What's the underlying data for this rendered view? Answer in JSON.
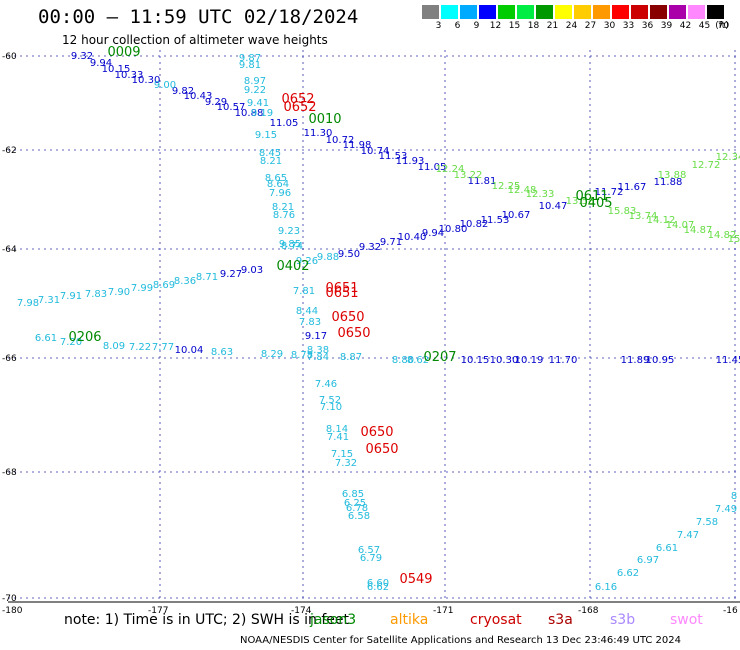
{
  "title": "00:00 – 11:59 UTC 02/18/2024",
  "subtitle": "12 hour collection of altimeter wave heights",
  "legend": {
    "unit": "(ft)",
    "bins": [
      {
        "label": "3",
        "color": "#808080"
      },
      {
        "label": "6",
        "color": "#00ffff"
      },
      {
        "label": "9",
        "color": "#00aaff"
      },
      {
        "label": "12",
        "color": "#0000ff"
      },
      {
        "label": "15",
        "color": "#00cc00"
      },
      {
        "label": "18",
        "color": "#00ee44"
      },
      {
        "label": "21",
        "color": "#009900"
      },
      {
        "label": "24",
        "color": "#ffff00"
      },
      {
        "label": "27",
        "color": "#ffcc00"
      },
      {
        "label": "30",
        "color": "#ff9900"
      },
      {
        "label": "33",
        "color": "#ff0000"
      },
      {
        "label": "36",
        "color": "#cc0000"
      },
      {
        "label": "39",
        "color": "#880000"
      },
      {
        "label": "42",
        "color": "#aa00aa"
      },
      {
        "label": "45",
        "color": "#ff88ff"
      },
      {
        "label": "70",
        "color": "#000000"
      }
    ]
  },
  "map": {
    "lon_ticks": [
      "-180",
      "-177",
      "-174",
      "-171",
      "-168",
      "-16"
    ],
    "lat_ticks": [
      "-60",
      "-62",
      "-64",
      "-66",
      "-68",
      "-70"
    ]
  },
  "footer": {
    "note": "note: 1) Time is in UTC; 2) SWH is in feet",
    "satellites": [
      {
        "name": "jason3",
        "color": "#008800"
      },
      {
        "name": "altika",
        "color": "#ff9900"
      },
      {
        "name": "cryosat",
        "color": "#cc0000"
      },
      {
        "name": "s3a",
        "color": "#aa0000"
      },
      {
        "name": "s3b",
        "color": "#aa88ff"
      },
      {
        "name": "swot",
        "color": "#ff88ff"
      }
    ],
    "credit": "NOAA/NESDIS Center for Satellite Applications and Research    13 Dec 23:46:49 UTC 2024"
  },
  "tracks": [
    {
      "color": "#0000cc",
      "points": [
        [
          "9.32",
          82,
          59
        ],
        [
          "9.94",
          101,
          66
        ],
        [
          "10.15",
          116,
          72
        ],
        [
          "10.33",
          129,
          78
        ],
        [
          "10.30",
          146,
          83
        ],
        [
          "9.82",
          183,
          94
        ],
        [
          "10.43",
          198,
          99
        ],
        [
          "9.29",
          216,
          105
        ],
        [
          "10.57",
          231,
          110
        ],
        [
          "10.88",
          249,
          116
        ],
        [
          "11.05",
          284,
          126
        ],
        [
          "11.30",
          318,
          136
        ],
        [
          "10.72",
          340,
          143
        ],
        [
          "11.98",
          357,
          148
        ],
        [
          "10.74",
          375,
          154
        ],
        [
          "11.53",
          393,
          159
        ],
        [
          "11.93",
          410,
          164
        ],
        [
          "11.05",
          432,
          170
        ],
        [
          "11.81",
          482,
          184
        ]
      ]
    },
    {
      "color": "#22bbdd",
      "points": [
        [
          "9.87",
          250,
          61
        ],
        [
          "9.81",
          250,
          68
        ],
        [
          "8.97",
          255,
          84
        ],
        [
          "9.22",
          255,
          93
        ],
        [
          "9.00",
          165,
          88
        ],
        [
          "9.41",
          258,
          106
        ],
        [
          "9.19",
          262,
          116
        ],
        [
          "9.15",
          266,
          138
        ],
        [
          "8.45",
          270,
          156
        ],
        [
          "8.21",
          271,
          164
        ],
        [
          "8.65",
          276,
          181
        ],
        [
          "8.64",
          278,
          187
        ],
        [
          "7.96",
          280,
          196
        ],
        [
          "8.21",
          283,
          210
        ],
        [
          "8.76",
          284,
          218
        ],
        [
          "9.23",
          289,
          234
        ],
        [
          "9.85",
          290,
          247
        ],
        [
          "9.26",
          307,
          264
        ],
        [
          "9.88",
          328,
          260
        ],
        [
          "8.74",
          292,
          249
        ],
        [
          "7.81",
          304,
          294
        ],
        [
          "8.44",
          307,
          314
        ],
        [
          "7.83",
          310,
          325
        ],
        [
          "8.38",
          318,
          353
        ],
        [
          "7.84",
          318,
          360
        ],
        [
          "7.46",
          326,
          387
        ],
        [
          "7.52",
          330,
          403
        ],
        [
          "7.10",
          331,
          410
        ],
        [
          "8.14",
          337,
          432
        ],
        [
          "7.41",
          338,
          440
        ],
        [
          "7.15",
          342,
          457
        ],
        [
          "7.32",
          346,
          466
        ],
        [
          "6.85",
          353,
          497
        ],
        [
          "6.25",
          355,
          506
        ],
        [
          "6.78",
          357,
          511
        ],
        [
          "6.58",
          359,
          519
        ],
        [
          "6.57",
          369,
          553
        ],
        [
          "6.79",
          371,
          561
        ],
        [
          "6.60",
          378,
          586
        ],
        [
          "6.62",
          378,
          590
        ]
      ]
    },
    {
      "color": "#0000cc",
      "points": [
        [
          "9.03",
          252,
          273
        ],
        [
          "9.27",
          231,
          277
        ],
        [
          "9.50",
          349,
          257
        ],
        [
          "9.32",
          370,
          250
        ],
        [
          "9.71",
          391,
          245
        ],
        [
          "10.40",
          412,
          240
        ],
        [
          "9.94",
          433,
          236
        ],
        [
          "10.80",
          453,
          232
        ],
        [
          "10.82",
          474,
          227
        ],
        [
          "11.53",
          495,
          223
        ],
        [
          "10.67",
          516,
          218
        ],
        [
          "10.47",
          553,
          209
        ],
        [
          "11.72",
          609,
          195
        ],
        [
          "11.67",
          632,
          190
        ],
        [
          "11.88",
          668,
          185
        ],
        [
          "10.04",
          189,
          353
        ],
        [
          "9.17",
          316,
          339
        ],
        [
          "10.15",
          475,
          363
        ],
        [
          "10.30",
          504,
          363
        ],
        [
          "10.19",
          529,
          363
        ],
        [
          "11.70",
          563,
          363
        ],
        [
          "11.89",
          635,
          363
        ],
        [
          "10.95",
          660,
          363
        ],
        [
          "11.45",
          730,
          363
        ]
      ]
    },
    {
      "color": "#22bbdd",
      "points": [
        [
          "7.98",
          28,
          306
        ],
        [
          "7.31",
          49,
          303
        ],
        [
          "7.91",
          71,
          299
        ],
        [
          "7.83",
          96,
          297
        ],
        [
          "7.90",
          119,
          295
        ],
        [
          "7.99",
          142,
          291
        ],
        [
          "8.69",
          164,
          288
        ],
        [
          "8.36",
          185,
          284
        ],
        [
          "8.71",
          207,
          280
        ],
        [
          "6.61",
          46,
          341
        ],
        [
          "7.20",
          71,
          345
        ],
        [
          "8.09",
          114,
          349
        ],
        [
          "7.22",
          140,
          350
        ],
        [
          "7.77",
          163,
          350
        ],
        [
          "8.63",
          222,
          355
        ],
        [
          "8.29",
          272,
          357
        ],
        [
          "8.78",
          302,
          358
        ],
        [
          "8.87",
          351,
          360
        ],
        [
          "8.80",
          403,
          363
        ],
        [
          "8.62",
          418,
          363
        ],
        [
          "6.16",
          606,
          590
        ],
        [
          "6.62",
          628,
          576
        ],
        [
          "6.97",
          648,
          563
        ],
        [
          "6.61",
          667,
          551
        ],
        [
          "7.47",
          688,
          538
        ],
        [
          "7.58",
          707,
          525
        ],
        [
          "7.49",
          726,
          512
        ],
        [
          "8",
          734,
          499
        ]
      ]
    },
    {
      "color": "#66dd44",
      "points": [
        [
          "12.24",
          450,
          172
        ],
        [
          "13.22",
          468,
          178
        ],
        [
          "12.25",
          506,
          189
        ],
        [
          "12.48",
          522,
          193
        ],
        [
          "12.33",
          540,
          197
        ],
        [
          "13.58",
          580,
          204
        ],
        [
          "15.83",
          622,
          214
        ],
        [
          "13.74",
          643,
          219
        ],
        [
          "14.12",
          661,
          223
        ],
        [
          "14.07",
          680,
          228
        ],
        [
          "14.87",
          698,
          233
        ],
        [
          "14.82",
          722,
          238
        ],
        [
          "15",
          734,
          242
        ],
        [
          "13.88",
          672,
          178
        ],
        [
          "12.72",
          706,
          168
        ],
        [
          "12.34",
          730,
          160
        ]
      ]
    },
    {
      "color": "#008800",
      "labels": [
        [
          "0009",
          124,
          56
        ],
        [
          "0010",
          325,
          123
        ],
        [
          "0402",
          293,
          270
        ],
        [
          "0206",
          85,
          341
        ],
        [
          "0207",
          440,
          361
        ],
        [
          "0405",
          596,
          207
        ],
        [
          "0611",
          592,
          200
        ]
      ]
    },
    {
      "color": "#dd0000",
      "labels": [
        [
          "0652",
          298,
          103
        ],
        [
          "0652",
          300,
          111
        ],
        [
          "0651",
          342,
          292
        ],
        [
          "0651",
          342,
          297
        ],
        [
          "0650",
          348,
          321
        ],
        [
          "0650",
          354,
          337
        ],
        [
          "0650",
          377,
          436
        ],
        [
          "0650",
          382,
          453
        ],
        [
          "0549",
          416,
          583
        ]
      ]
    }
  ]
}
